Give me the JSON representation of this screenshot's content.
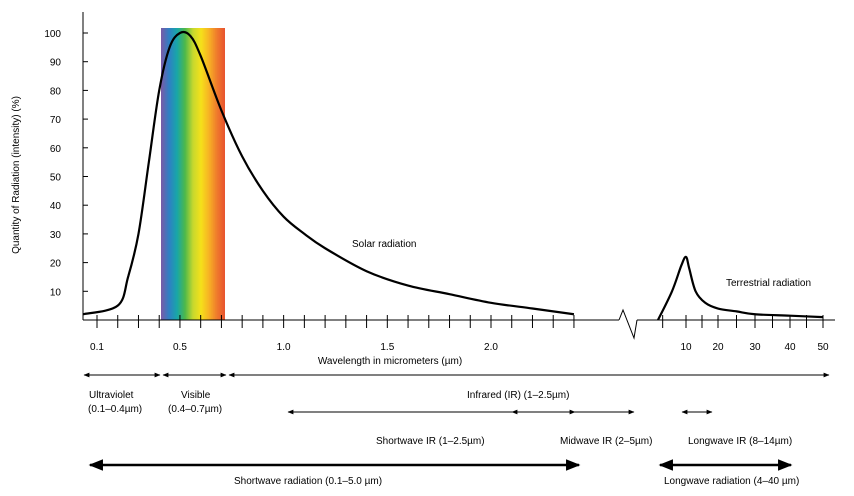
{
  "chart_data": {
    "type": "line",
    "ylabel": "Quantity of Radiation (intensity) (%)",
    "xlabel": "Wavelength in micrometers (µm)",
    "ylim": [
      0,
      100
    ],
    "y_ticks": [
      10,
      20,
      30,
      40,
      50,
      60,
      70,
      80,
      90,
      100
    ],
    "x_tick_labels_left": [
      "0.1",
      "0.5",
      "1.0",
      "1.5",
      "2.0"
    ],
    "x_tick_values_left": [
      0.1,
      0.5,
      1.0,
      1.5,
      2.0
    ],
    "x_tick_labels_right": [
      "10",
      "20",
      "30",
      "40",
      "50"
    ],
    "x_tick_values_right": [
      10,
      20,
      30,
      40,
      50
    ],
    "x_axis_break": true,
    "visible_spectrum_range": [
      0.4,
      0.7
    ],
    "visible_spectrum_colors": [
      "#7b5aa6",
      "#2f7fc4",
      "#18a6a8",
      "#4db84a",
      "#c6d82e",
      "#f5e11a",
      "#f7b224",
      "#ef7a2c",
      "#e8532f"
    ],
    "series": [
      {
        "name": "Solar radiation",
        "x": [
          0.1,
          0.2,
          0.25,
          0.3,
          0.35,
          0.4,
          0.45,
          0.5,
          0.55,
          0.6,
          0.7,
          0.8,
          0.9,
          1.0,
          1.1,
          1.2,
          1.4,
          1.6,
          1.8,
          2.0,
          2.2,
          2.4
        ],
        "y": [
          2,
          5,
          15,
          30,
          55,
          80,
          95,
          100,
          99,
          92,
          73,
          57,
          45,
          36,
          30,
          25,
          17,
          12,
          9,
          6,
          4,
          2
        ]
      },
      {
        "name": "Terrestrial radiation",
        "x": [
          4,
          7,
          9,
          10,
          11,
          13,
          16,
          20,
          25,
          30,
          40,
          50
        ],
        "y": [
          0,
          10,
          19,
          22,
          18,
          10,
          6,
          4,
          3,
          2,
          1.5,
          1
        ]
      }
    ],
    "annotations": [
      {
        "text": "Ultraviolet",
        "range_label": "(0.1–0.4µm)"
      },
      {
        "text": "Visible",
        "range_label": "(0.4–0.7µm)"
      },
      {
        "text": "Infrared (IR) (1–2.5µm)"
      },
      {
        "text": "Shortwave IR (1–2.5µm)"
      },
      {
        "text": "Midwave IR (2–5µm)"
      },
      {
        "text": "Longwave IR (8–14µm)"
      },
      {
        "text": "Shortwave radiation (0.1–5.0 µm)"
      },
      {
        "text": "Longwave radiation (4–40 µm)"
      }
    ]
  },
  "labels": {
    "ylabel": "Quantity of Radiation (intensity) (%)",
    "xlabel": "Wavelength in micrometers (µm)",
    "solar": "Solar radiation",
    "terrestrial": "Terrestrial radiation",
    "ultraviolet": "Ultraviolet",
    "ultraviolet_range": "(0.1–0.4µm)",
    "visible": "Visible",
    "visible_range": "(0.4–0.7µm)",
    "infrared": "Infrared (IR) (1–2.5µm)",
    "shortwave_ir": "Shortwave IR (1–2.5µm)",
    "midwave_ir": "Midwave IR (2–5µm)",
    "longwave_ir": "Longwave IR (8–14µm)",
    "shortwave_radiation": "Shortwave radiation (0.1–5.0 µm)",
    "longwave_radiation": "Longwave radiation (4–40 µm)"
  }
}
